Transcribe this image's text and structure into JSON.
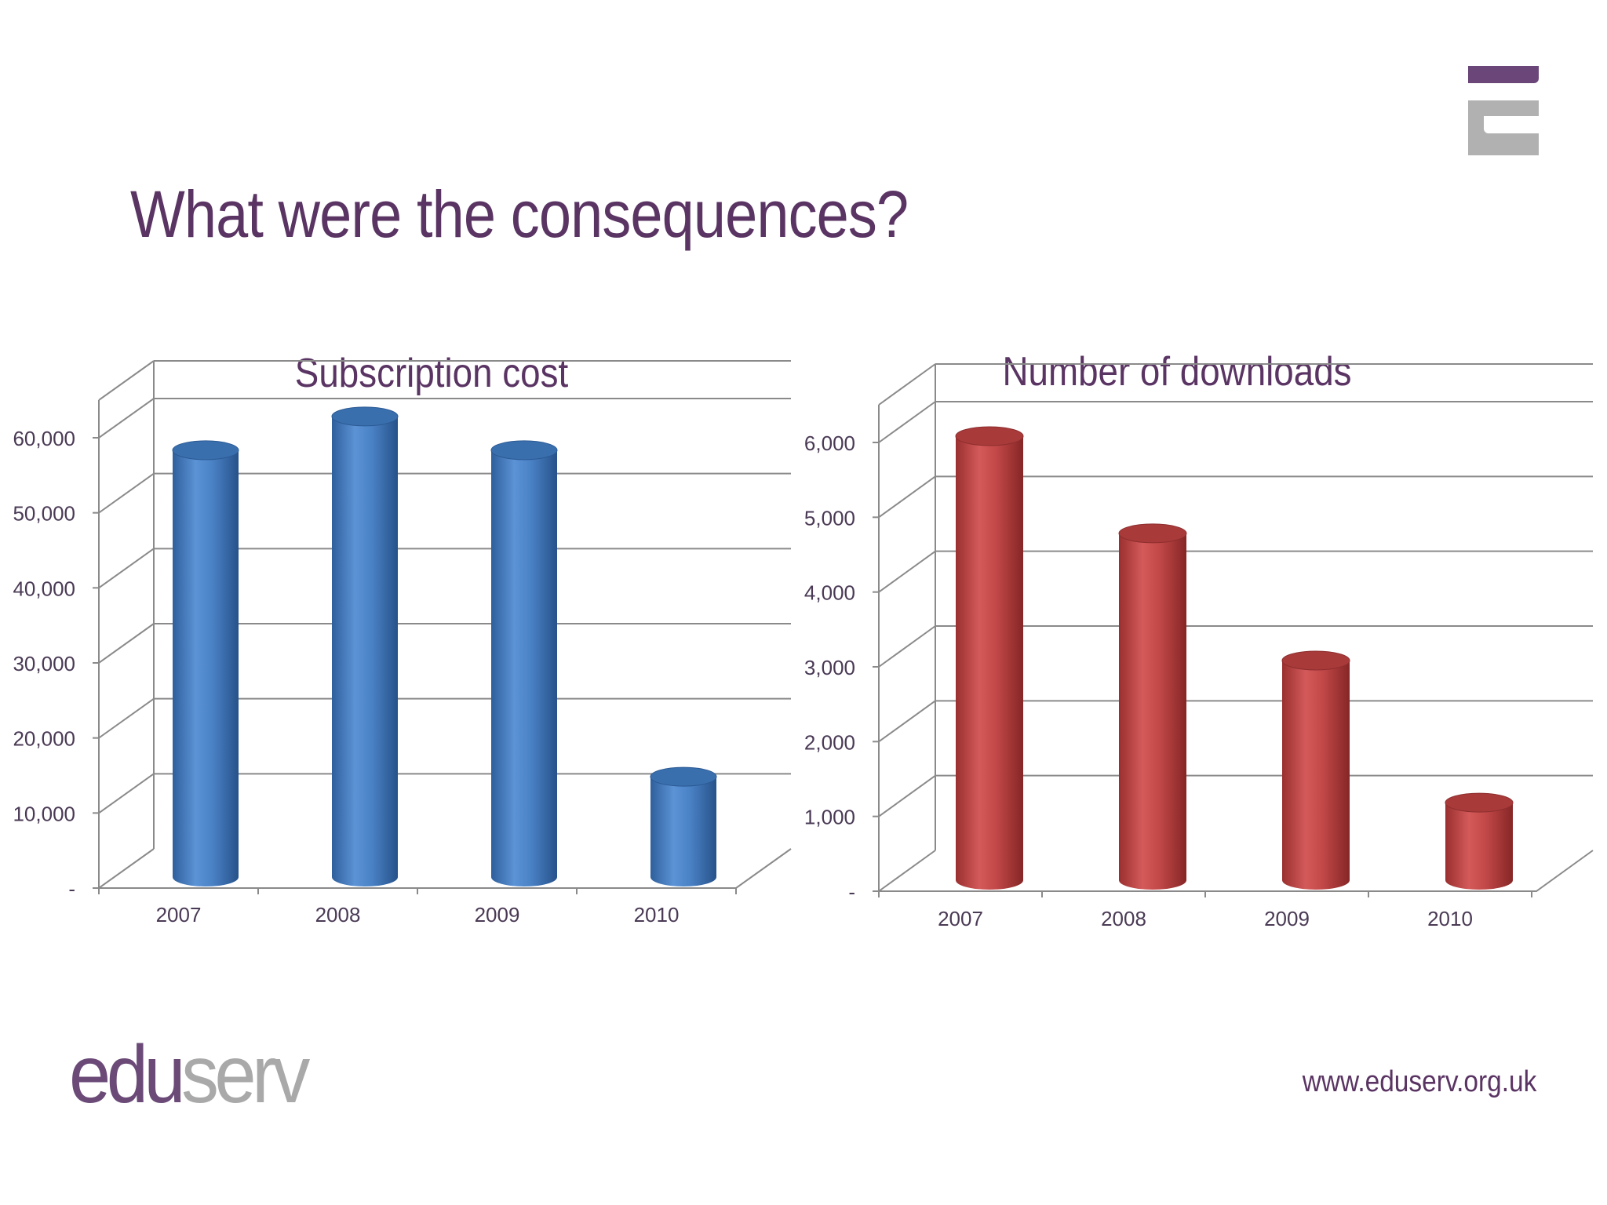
{
  "slide": {
    "title": "What were the consequences?",
    "website": "www.eduserv.org.uk",
    "logo_text_primary": "edu",
    "logo_text_secondary": "serv"
  },
  "colors": {
    "title": "#5a3463",
    "blue_series": "#4a82c6",
    "red_series": "#c24848",
    "grid": "#8a8a8a",
    "tick_text": "#4a3a55"
  },
  "chart_data": [
    {
      "type": "bar",
      "style": "3d-cylinder",
      "title": "Subscription cost",
      "categories": [
        "2007",
        "2008",
        "2009",
        "2010"
      ],
      "values": [
        57500,
        62000,
        57500,
        14000
      ],
      "ylim": [
        0,
        60000
      ],
      "yticks": [
        0,
        10000,
        20000,
        30000,
        40000,
        50000,
        60000
      ],
      "ytick_labels": [
        "-",
        "10,000",
        "20,000",
        "30,000",
        "40,000",
        "50,000",
        "60,000"
      ],
      "xlabel": "",
      "ylabel": "",
      "grid": true,
      "color": "#4a82c6"
    },
    {
      "type": "bar",
      "style": "3d-cylinder",
      "title": "Number of downloads",
      "categories": [
        "2007",
        "2008",
        "2009",
        "2010"
      ],
      "values": [
        6000,
        4700,
        3000,
        1100
      ],
      "ylim": [
        0,
        6000
      ],
      "yticks": [
        0,
        1000,
        2000,
        3000,
        4000,
        5000,
        6000
      ],
      "ytick_labels": [
        "-",
        "1,000",
        "2,000",
        "3,000",
        "4,000",
        "5,000",
        "6,000"
      ],
      "xlabel": "",
      "ylabel": "",
      "grid": true,
      "color": "#c24848"
    }
  ]
}
